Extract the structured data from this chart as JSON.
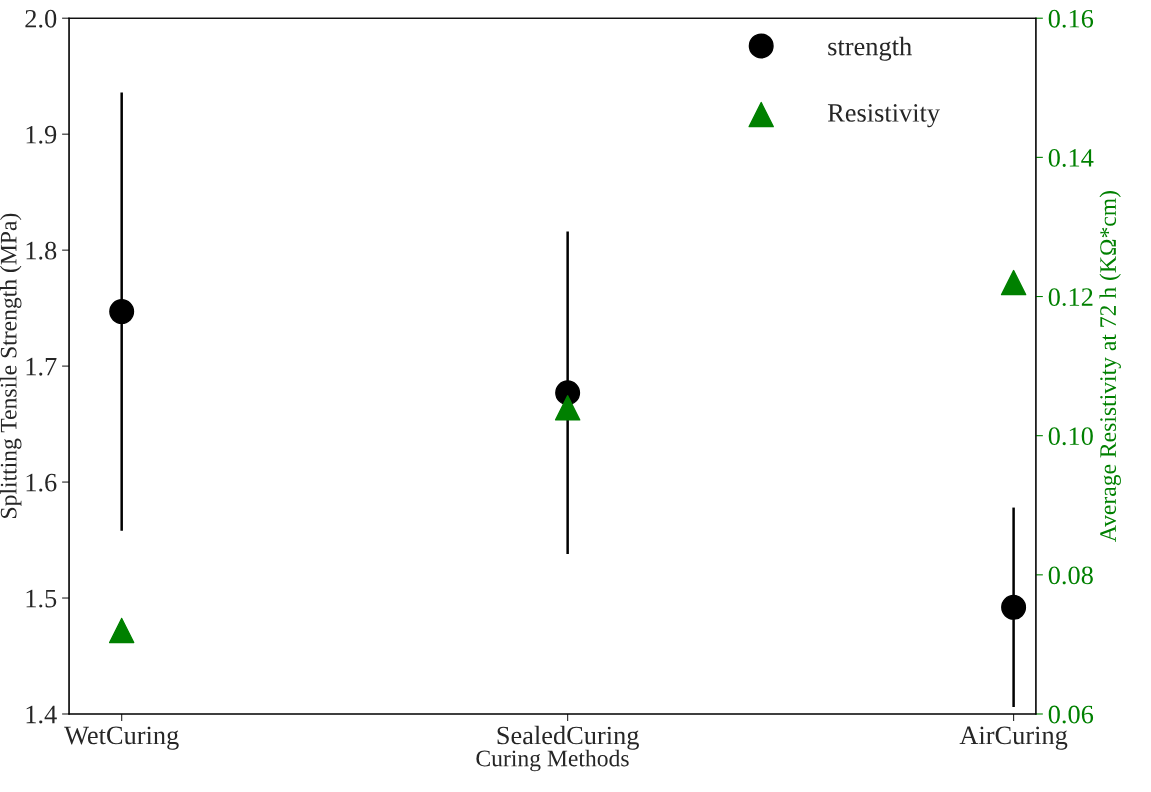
{
  "chart_data": {
    "type": "scatter",
    "xlabel": "Curing Methods",
    "ylabel": "Splitting Tensile Strength (MPa)",
    "y2label": "Average Resistivity at 72 h (KΩ*cm)",
    "categories": [
      "WetCuring",
      "SealedCuring",
      "AirCuring"
    ],
    "series": [
      {
        "name": "strength",
        "color": "#000000",
        "marker": "circle",
        "values": [
          1.747,
          1.677,
          1.492
        ],
        "errors": [
          0.189,
          0.139,
          0.086
        ]
      },
      {
        "name": "Resistivity",
        "color": "#008000",
        "marker": "triangle",
        "axis": "y2",
        "values": [
          0.072,
          0.104,
          0.122
        ]
      }
    ],
    "ylim": [
      1.4,
      2.0
    ],
    "yticks": [
      1.4,
      1.5,
      1.6,
      1.7,
      1.8,
      1.9,
      {
        "value": 2,
        "label": "2.0"
      }
    ],
    "y2lim": [
      0.06,
      0.16
    ],
    "y2ticks": [
      0.06,
      0.08,
      {
        "value": 0.1,
        "label": "0.10"
      },
      0.12,
      0.14,
      0.16
    ],
    "grid": false,
    "legend": "top right"
  }
}
